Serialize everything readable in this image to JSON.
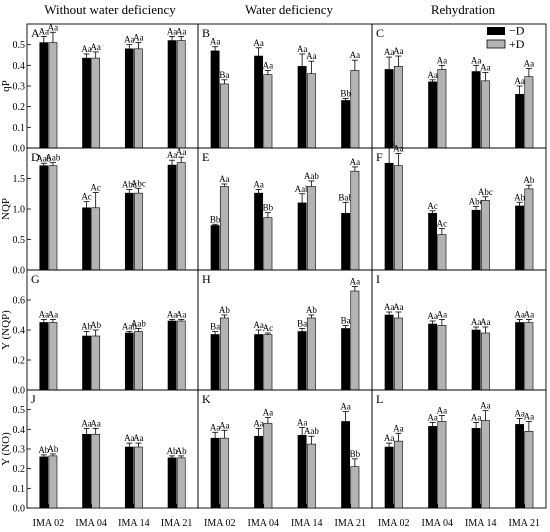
{
  "figure": {
    "column_titles": [
      "Without water deficiency",
      "Water deficiency",
      "Rehydration"
    ],
    "legend": [
      {
        "label": "−D",
        "color": "#000000"
      },
      {
        "label": "+D",
        "color": "#b3b3b3"
      }
    ]
  },
  "chart_data": {
    "type": "bar",
    "layout": "4 rows x 3 columns small-multiple grouped bar charts",
    "categories": [
      "IMA 02",
      "IMA 04",
      "IMA 14",
      "IMA 21"
    ],
    "series": [
      {
        "name": "−D",
        "color": "#000000"
      },
      {
        "name": "+D",
        "color": "#b3b3b3"
      }
    ],
    "rows": [
      {
        "ylabel": "qP",
        "ylim": [
          0.0,
          0.6
        ],
        "yticks": [
          0.0,
          0.1,
          0.2,
          0.3,
          0.4,
          0.5
        ]
      },
      {
        "ylabel": "NQP",
        "ylim": [
          0.0,
          2.0
        ],
        "yticks": [
          0.0,
          0.5,
          1.0,
          1.5
        ]
      },
      {
        "ylabel": "Y (NQP)",
        "ylim": [
          0.0,
          0.8
        ],
        "yticks": [
          0.0,
          0.2,
          0.4,
          0.6
        ]
      },
      {
        "ylabel": "Y (NO)",
        "ylim": [
          0.0,
          0.6
        ],
        "yticks": [
          0.0,
          0.1,
          0.2,
          0.3,
          0.4,
          0.5
        ]
      }
    ],
    "panels": [
      {
        "letter": "A",
        "row": 0,
        "col": 0,
        "minusD": [
          0.51,
          0.435,
          0.48,
          0.52
        ],
        "plusD": [
          0.51,
          0.435,
          0.48,
          0.52
        ],
        "err_minusD": [
          0.03,
          0.02,
          0.02,
          0.02
        ],
        "err_plusD": [
          0.05,
          0.03,
          0.03,
          0.02
        ],
        "labels_minusD": [
          "Aa",
          "Aa",
          "Aa",
          "Aa"
        ],
        "labels_plusD": [
          "Aa",
          "Aa",
          "Aa",
          "Aa"
        ]
      },
      {
        "letter": "B",
        "row": 0,
        "col": 1,
        "minusD": [
          0.47,
          0.445,
          0.395,
          0.23
        ],
        "plusD": [
          0.31,
          0.355,
          0.36,
          0.375
        ],
        "err_minusD": [
          0.02,
          0.04,
          0.06,
          0.01
        ],
        "err_plusD": [
          0.02,
          0.02,
          0.06,
          0.05
        ],
        "labels_minusD": [
          "Aa",
          "Aa",
          "Aa",
          "Bb"
        ],
        "labels_plusD": [
          "Ba",
          "Aa",
          "Aa",
          "Aa"
        ]
      },
      {
        "letter": "C",
        "row": 0,
        "col": 2,
        "minusD": [
          0.38,
          0.32,
          0.37,
          0.26
        ],
        "plusD": [
          0.395,
          0.38,
          0.325,
          0.345
        ],
        "err_minusD": [
          0.06,
          0.01,
          0.03,
          0.04
        ],
        "err_plusD": [
          0.05,
          0.02,
          0.04,
          0.04
        ],
        "labels_minusD": [
          "Aa",
          "Aa",
          "Aa",
          "Aa"
        ],
        "labels_plusD": [
          "Aa",
          "Aa",
          "Aa",
          "Aa"
        ]
      },
      {
        "letter": "D",
        "row": 1,
        "col": 0,
        "minusD": [
          1.71,
          1.02,
          1.26,
          1.72
        ],
        "plusD": [
          1.71,
          1.02,
          1.26,
          1.76
        ],
        "err_minusD": [
          0.04,
          0.1,
          0.06,
          0.08
        ],
        "err_plusD": [
          0.05,
          0.25,
          0.08,
          0.09
        ],
        "labels_minusD": [
          "Aab",
          "Ac",
          "Abc",
          "Aa"
        ],
        "labels_plusD": [
          "Aab",
          "Ac",
          "Abc",
          "Aa"
        ]
      },
      {
        "letter": "E",
        "row": 1,
        "col": 1,
        "minusD": [
          0.73,
          1.26,
          1.1,
          0.93
        ],
        "plusD": [
          1.37,
          0.86,
          1.37,
          1.62
        ],
        "err_minusD": [
          0.02,
          0.06,
          0.15,
          0.18
        ],
        "err_plusD": [
          0.04,
          0.08,
          0.09,
          0.07
        ],
        "labels_minusD": [
          "Bb",
          "Aa",
          "Aab",
          "Bab"
        ],
        "labels_plusD": [
          "Aa",
          "Bb",
          "Aab",
          "Aa"
        ]
      },
      {
        "letter": "F",
        "row": 1,
        "col": 2,
        "minusD": [
          1.75,
          0.93,
          0.98,
          1.05
        ],
        "plusD": [
          1.71,
          0.58,
          1.14,
          1.33
        ],
        "err_minusD": [
          0.25,
          0.04,
          0.06,
          0.06
        ],
        "err_plusD": [
          0.2,
          0.1,
          0.06,
          0.06
        ],
        "labels_minusD": [
          "Aa",
          "Ac",
          "Abc",
          "Ab"
        ],
        "labels_plusD": [
          "Aa",
          "Ac",
          "Abc",
          "Ab"
        ]
      },
      {
        "letter": "G",
        "row": 2,
        "col": 0,
        "minusD": [
          0.45,
          0.36,
          0.38,
          0.46
        ],
        "plusD": [
          0.45,
          0.36,
          0.39,
          0.46
        ],
        "err_minusD": [
          0.02,
          0.03,
          0.01,
          0.01
        ],
        "err_plusD": [
          0.02,
          0.04,
          0.02,
          0.01
        ],
        "labels_minusD": [
          "Aa",
          "Ab",
          "Aab",
          "Aa"
        ],
        "labels_plusD": [
          "Aa",
          "Ab",
          "Aab",
          "Aa"
        ]
      },
      {
        "letter": "H",
        "row": 2,
        "col": 1,
        "minusD": [
          0.37,
          0.37,
          0.39,
          0.41
        ],
        "plusD": [
          0.48,
          0.37,
          0.48,
          0.66
        ],
        "err_minusD": [
          0.02,
          0.03,
          0.02,
          0.02
        ],
        "err_plusD": [
          0.02,
          0.01,
          0.02,
          0.03
        ],
        "labels_minusD": [
          "Ba",
          "Aa",
          "Ba",
          "Ba"
        ],
        "labels_plusD": [
          "Ab",
          "Ac",
          "Ab",
          "Aa"
        ]
      },
      {
        "letter": "I",
        "row": 2,
        "col": 2,
        "minusD": [
          0.5,
          0.44,
          0.4,
          0.45
        ],
        "plusD": [
          0.48,
          0.43,
          0.38,
          0.45
        ],
        "err_minusD": [
          0.02,
          0.02,
          0.02,
          0.02
        ],
        "err_plusD": [
          0.04,
          0.04,
          0.04,
          0.02
        ],
        "labels_minusD": [
          "Aa",
          "Aa",
          "Aa",
          "Aa"
        ],
        "labels_plusD": [
          "Aa",
          "Aa",
          "Aa",
          "Aa"
        ]
      },
      {
        "letter": "J",
        "row": 3,
        "col": 0,
        "minusD": [
          0.26,
          0.375,
          0.31,
          0.255
        ],
        "plusD": [
          0.265,
          0.375,
          0.31,
          0.255
        ],
        "err_minusD": [
          0.01,
          0.03,
          0.02,
          0.01
        ],
        "err_plusD": [
          0.01,
          0.03,
          0.02,
          0.01
        ],
        "labels_minusD": [
          "Ab",
          "Aa",
          "Aa",
          "Ab"
        ],
        "labels_plusD": [
          "Ab",
          "Aa",
          "Aa",
          "Ab"
        ]
      },
      {
        "letter": "K",
        "row": 3,
        "col": 1,
        "minusD": [
          0.355,
          0.365,
          0.37,
          0.44
        ],
        "plusD": [
          0.355,
          0.43,
          0.325,
          0.21
        ],
        "err_minusD": [
          0.03,
          0.04,
          0.04,
          0.05
        ],
        "err_plusD": [
          0.04,
          0.03,
          0.04,
          0.04
        ],
        "labels_minusD": [
          "Aa",
          "Aa",
          "Aa",
          "Aa"
        ],
        "labels_plusD": [
          "Aa",
          "Aa",
          "Aab",
          "Bb"
        ]
      },
      {
        "letter": "L",
        "row": 3,
        "col": 2,
        "minusD": [
          0.31,
          0.415,
          0.405,
          0.425
        ],
        "plusD": [
          0.34,
          0.44,
          0.445,
          0.39
        ],
        "err_minusD": [
          0.02,
          0.02,
          0.03,
          0.03
        ],
        "err_plusD": [
          0.04,
          0.03,
          0.05,
          0.05
        ],
        "labels_minusD": [
          "Aa",
          "Aa",
          "Aa",
          "Aa"
        ],
        "labels_plusD": [
          "Aa",
          "Aa",
          "Aa",
          "Aa"
        ]
      }
    ]
  }
}
